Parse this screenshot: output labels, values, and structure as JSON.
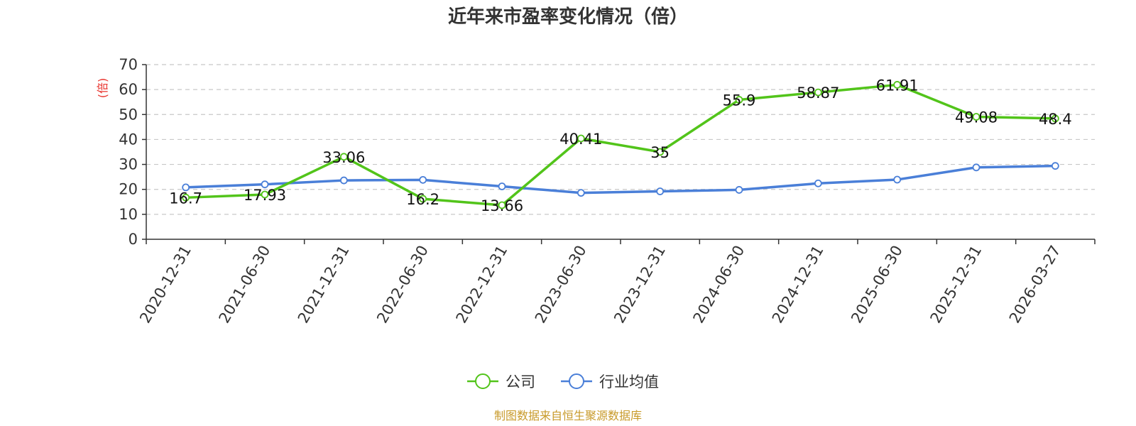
{
  "chart_data": {
    "type": "line",
    "title": "近年来市盈率变化情况（倍）",
    "ylabel": "(倍)",
    "xlabel": "",
    "ylim": [
      0,
      70
    ],
    "yticks": [
      0,
      10,
      20,
      30,
      40,
      50,
      60,
      70
    ],
    "grid": true,
    "legend_position": "bottom-center",
    "categories": [
      "2020-12-31",
      "2021-06-30",
      "2021-12-31",
      "2022-06-30",
      "2022-12-31",
      "2023-06-30",
      "2023-12-31",
      "2024-06-30",
      "2024-12-31",
      "2025-06-30",
      "2025-12-31",
      "2026-03-27"
    ],
    "series": [
      {
        "name": "公司",
        "color": "#52c41a",
        "values": [
          16.7,
          17.93,
          33.06,
          16.2,
          13.66,
          40.41,
          35,
          55.9,
          58.87,
          61.91,
          49.08,
          48.4
        ],
        "labels": [
          "16.7",
          "17.93",
          "33.06",
          "16.2",
          "13.66",
          "40.41",
          "35",
          "55.9",
          "58.87",
          "61.91",
          "49.08",
          "48.4"
        ]
      },
      {
        "name": "行业均值",
        "color": "#4a7fd8",
        "values": [
          20.8,
          22.0,
          23.6,
          23.8,
          21.2,
          18.6,
          19.2,
          19.8,
          22.4,
          23.9,
          28.8,
          29.4
        ]
      }
    ]
  },
  "source_note": "制图数据来自恒生聚源数据库",
  "colors": {
    "ylabel": "#e8322c",
    "source": "#c89a2a",
    "grid": "#c8c8c8",
    "axis": "#333333"
  }
}
